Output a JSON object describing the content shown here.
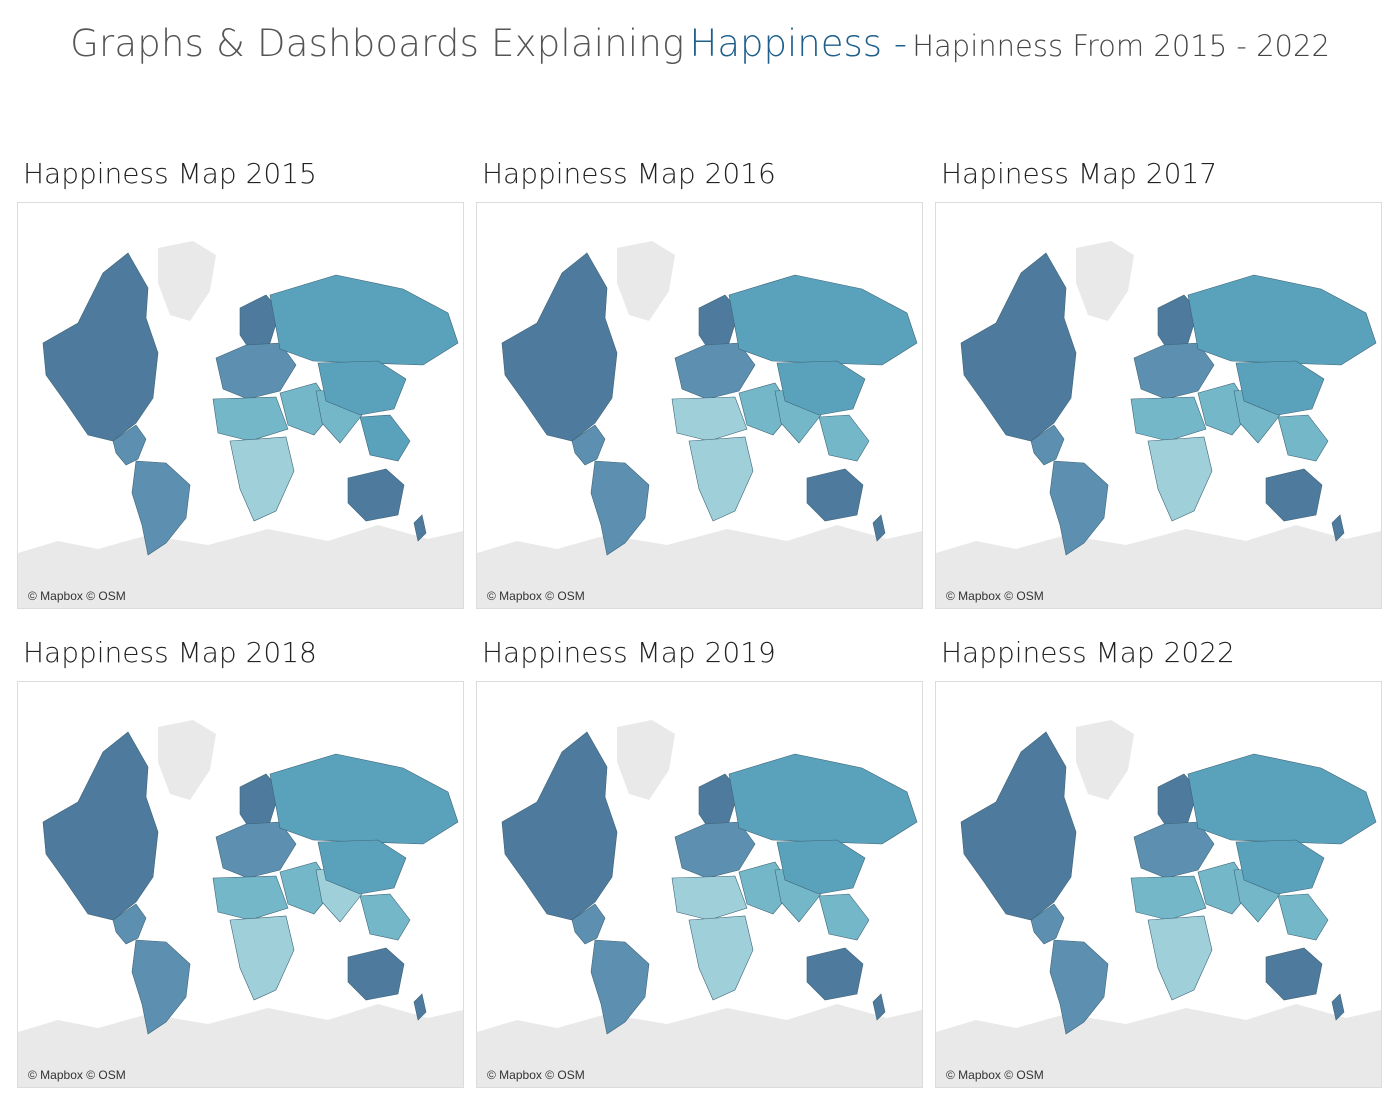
{
  "header": {
    "title": "Graphs & Dashboards Explaining",
    "highlight": "Happiness -",
    "subtitle": "Hapinness From 2015 - 2022"
  },
  "legend_colors": {
    "high": "#4e7a9e",
    "upper": "#5d90b0",
    "mid": "#5aa2bc",
    "lower": "#74b7c8",
    "low": "#9fd0da",
    "no_data": "#e9e9e9",
    "border": "#3e6578"
  },
  "attribution": "© Mapbox © OSM",
  "maps": [
    {
      "title": "Happiness Map 2015",
      "regions": {
        "north_america": "high",
        "greenland": "no_data",
        "central_america": "upper",
        "south_america": "upper",
        "europe_north": "high",
        "europe": "upper",
        "russia": "mid",
        "middle_east": "lower",
        "north_africa": "lower",
        "africa": "low",
        "south_asia": "lower",
        "china": "mid",
        "southeast_asia": "mid",
        "australia": "high",
        "new_zealand": "high",
        "antarctica": "no_data"
      }
    },
    {
      "title": "Happiness Map 2016",
      "regions": {
        "north_america": "high",
        "greenland": "no_data",
        "central_america": "upper",
        "south_america": "upper",
        "europe_north": "high",
        "europe": "upper",
        "russia": "mid",
        "middle_east": "lower",
        "north_africa": "low",
        "africa": "low",
        "south_asia": "lower",
        "china": "mid",
        "southeast_asia": "lower",
        "australia": "high",
        "new_zealand": "high",
        "antarctica": "no_data"
      }
    },
    {
      "title": "Hapiness Map 2017",
      "regions": {
        "north_america": "high",
        "greenland": "no_data",
        "central_america": "upper",
        "south_america": "upper",
        "europe_north": "high",
        "europe": "upper",
        "russia": "mid",
        "middle_east": "lower",
        "north_africa": "lower",
        "africa": "low",
        "south_asia": "lower",
        "china": "mid",
        "southeast_asia": "lower",
        "australia": "high",
        "new_zealand": "high",
        "antarctica": "no_data"
      }
    },
    {
      "title": "Happiness Map 2018",
      "regions": {
        "north_america": "high",
        "greenland": "no_data",
        "central_america": "upper",
        "south_america": "upper",
        "europe_north": "high",
        "europe": "upper",
        "russia": "mid",
        "middle_east": "lower",
        "north_africa": "lower",
        "africa": "low",
        "south_asia": "low",
        "china": "mid",
        "southeast_asia": "lower",
        "australia": "high",
        "new_zealand": "high",
        "antarctica": "no_data"
      }
    },
    {
      "title": "Happiness Map 2019",
      "regions": {
        "north_america": "high",
        "greenland": "no_data",
        "central_america": "upper",
        "south_america": "upper",
        "europe_north": "high",
        "europe": "upper",
        "russia": "mid",
        "middle_east": "lower",
        "north_africa": "low",
        "africa": "low",
        "south_asia": "lower",
        "china": "mid",
        "southeast_asia": "lower",
        "australia": "high",
        "new_zealand": "high",
        "antarctica": "no_data"
      }
    },
    {
      "title": "Happiness Map 2022",
      "regions": {
        "north_america": "high",
        "greenland": "no_data",
        "central_america": "upper",
        "south_america": "upper",
        "europe_north": "high",
        "europe": "upper",
        "russia": "mid",
        "middle_east": "lower",
        "north_africa": "lower",
        "africa": "low",
        "south_asia": "lower",
        "china": "mid",
        "southeast_asia": "lower",
        "australia": "high",
        "new_zealand": "high",
        "antarctica": "no_data"
      }
    }
  ]
}
